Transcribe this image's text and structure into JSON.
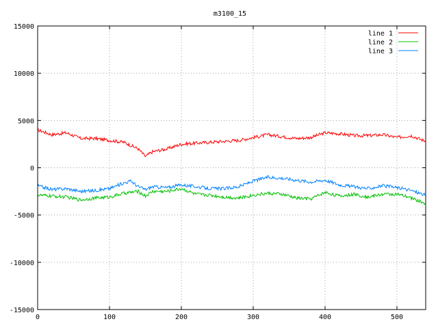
{
  "chart_data": {
    "type": "line",
    "title": "m3100_15",
    "xlabel": "",
    "ylabel": "",
    "xlim": [
      0,
      540
    ],
    "ylim": [
      -15000,
      15000
    ],
    "xticks": [
      0,
      100,
      200,
      300,
      400,
      500
    ],
    "yticks": [
      -15000,
      -10000,
      -5000,
      0,
      5000,
      10000,
      15000
    ],
    "grid": true,
    "legend_position": "top-right",
    "series": [
      {
        "name": "line 1",
        "color": "#ff0000",
        "x": [
          0,
          20,
          40,
          60,
          80,
          100,
          120,
          140,
          150,
          160,
          180,
          200,
          220,
          240,
          260,
          280,
          300,
          320,
          340,
          360,
          380,
          400,
          420,
          440,
          460,
          480,
          500,
          520,
          540
        ],
        "y": [
          4000,
          3500,
          3700,
          3100,
          3100,
          2900,
          2700,
          2000,
          1200,
          1700,
          2000,
          2500,
          2600,
          2700,
          2800,
          2900,
          3200,
          3500,
          3300,
          3100,
          3200,
          3700,
          3600,
          3400,
          3400,
          3500,
          3200,
          3400,
          2800
        ]
      },
      {
        "name": "line 2",
        "color": "#00c000",
        "x": [
          0,
          20,
          40,
          60,
          80,
          100,
          120,
          140,
          150,
          160,
          180,
          200,
          220,
          240,
          260,
          280,
          300,
          320,
          340,
          360,
          380,
          400,
          420,
          440,
          460,
          480,
          500,
          520,
          540
        ],
        "y": [
          -2900,
          -3000,
          -3100,
          -3400,
          -3200,
          -3100,
          -2700,
          -2500,
          -3000,
          -2500,
          -2500,
          -2200,
          -2800,
          -2900,
          -3100,
          -3200,
          -2900,
          -2700,
          -2800,
          -3200,
          -3300,
          -2600,
          -3000,
          -2800,
          -3100,
          -2800,
          -2800,
          -3200,
          -3800
        ]
      },
      {
        "name": "line 3",
        "color": "#0080ff",
        "x": [
          0,
          20,
          40,
          60,
          80,
          100,
          120,
          130,
          140,
          150,
          160,
          180,
          200,
          220,
          240,
          260,
          280,
          300,
          320,
          340,
          360,
          380,
          400,
          420,
          440,
          460,
          480,
          500,
          520,
          540
        ],
        "y": [
          -1900,
          -2300,
          -2200,
          -2500,
          -2400,
          -2200,
          -1600,
          -1400,
          -2000,
          -2300,
          -2000,
          -2100,
          -1800,
          -2000,
          -2200,
          -2200,
          -2000,
          -1400,
          -1000,
          -1100,
          -1300,
          -1500,
          -1300,
          -1800,
          -2000,
          -2200,
          -1900,
          -2100,
          -2400,
          -2900
        ]
      }
    ]
  }
}
